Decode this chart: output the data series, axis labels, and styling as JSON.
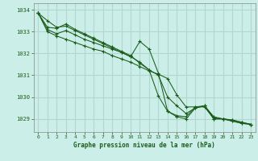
{
  "background_color": "#cceee8",
  "grid_color": "#b0d8d0",
  "line_color": "#1a5c1a",
  "marker_color": "#1a5c1a",
  "xlabel": "Graphe pression niveau de la mer (hPa)",
  "ylim": [
    1028.4,
    1034.3
  ],
  "xlim": [
    -0.5,
    23.5
  ],
  "yticks": [
    1029,
    1030,
    1031,
    1032,
    1033,
    1034
  ],
  "xticks": [
    0,
    1,
    2,
    3,
    4,
    5,
    6,
    7,
    8,
    9,
    10,
    11,
    12,
    13,
    14,
    15,
    16,
    17,
    18,
    19,
    20,
    21,
    22,
    23
  ],
  "series": [
    [
      1033.85,
      1033.5,
      1033.2,
      1033.25,
      1033.05,
      1032.85,
      1032.65,
      1032.45,
      1032.25,
      1032.05,
      1031.85,
      1032.55,
      1032.2,
      1031.1,
      1029.35,
      1029.15,
      1029.1,
      1029.55,
      1029.55,
      1029.0,
      1029.0,
      1028.9,
      1028.8,
      1028.75
    ],
    [
      1033.85,
      1033.2,
      1033.15,
      1033.35,
      1033.1,
      1032.9,
      1032.7,
      1032.5,
      1032.3,
      1032.1,
      1031.9,
      1031.55,
      1031.25,
      1030.05,
      1029.35,
      1029.1,
      1029.0,
      1029.5,
      1029.6,
      1029.0,
      1029.0,
      1028.9,
      1028.8,
      1028.75
    ],
    [
      1033.85,
      1033.1,
      1032.9,
      1033.05,
      1032.85,
      1032.65,
      1032.5,
      1032.35,
      1032.2,
      1032.05,
      1031.85,
      1031.6,
      1031.25,
      1031.0,
      1030.0,
      1029.6,
      1029.25,
      1029.5,
      1029.6,
      1029.05,
      1029.0,
      1028.95,
      1028.85,
      1028.75
    ],
    [
      1033.85,
      1033.0,
      1032.8,
      1032.65,
      1032.5,
      1032.35,
      1032.2,
      1032.1,
      1031.9,
      1031.75,
      1031.6,
      1031.4,
      1031.2,
      1031.05,
      1030.85,
      1030.1,
      1029.55,
      1029.55,
      1029.6,
      1029.1,
      1029.0,
      1028.95,
      1028.85,
      1028.75
    ]
  ]
}
